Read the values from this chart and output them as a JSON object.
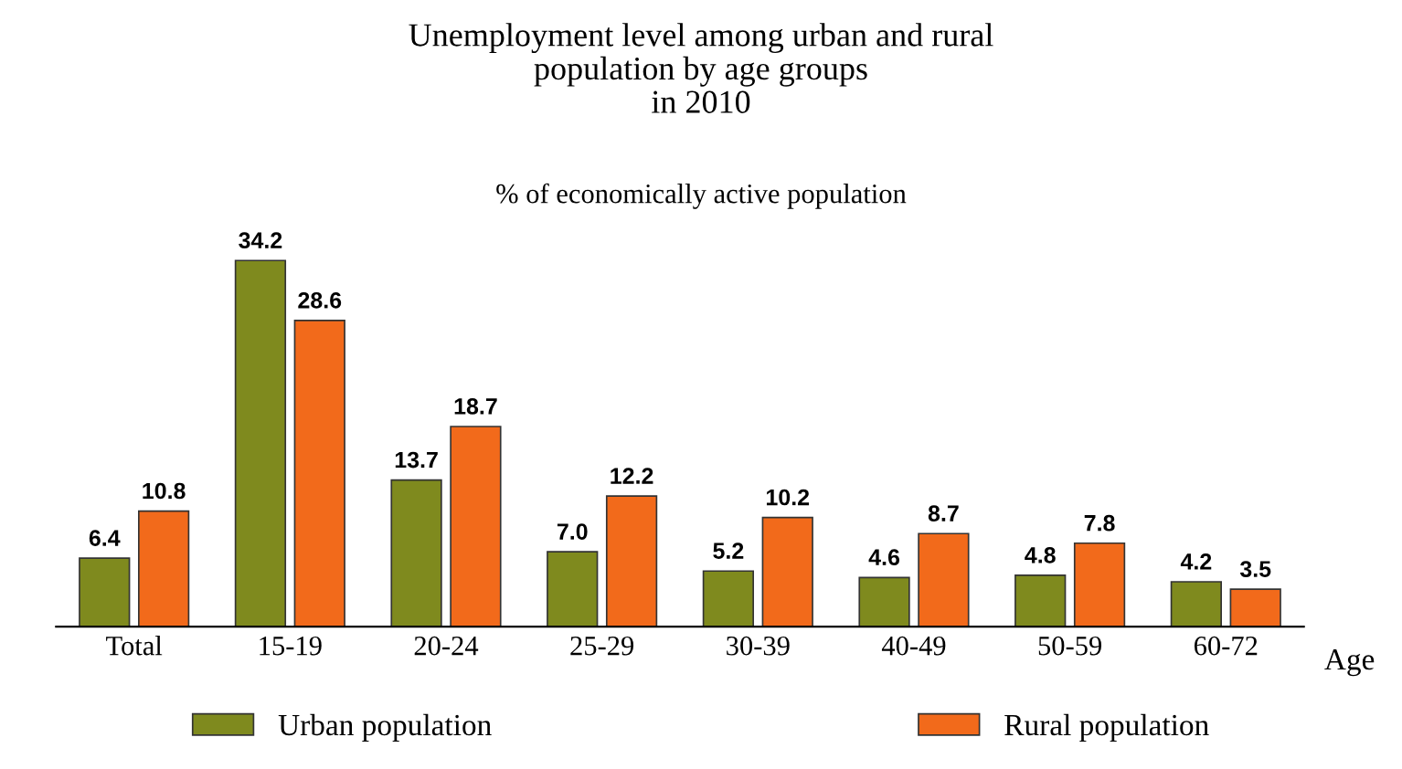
{
  "chart_data": {
    "type": "bar",
    "title": "Unemployment level among urban and rural\npopulation by age groups\nin 2010",
    "subtitle": "% of economically active population",
    "xlabel": "Age",
    "categories": [
      "Total",
      "15-19",
      "20-24",
      "25-29",
      "30-39",
      "40-49",
      "50-59",
      "60-72"
    ],
    "series": [
      {
        "name": "Urban population",
        "color": "#7f8a1e",
        "values": [
          6.4,
          34.2,
          13.7,
          7.0,
          5.2,
          4.6,
          4.8,
          4.2
        ],
        "value_labels": [
          "6.4",
          "34.2",
          "13.7",
          "7.0",
          "5.2",
          "4.6",
          "4.8",
          "4.2"
        ]
      },
      {
        "name": "Rural population",
        "color": "#f26a1b",
        "values": [
          10.8,
          28.6,
          18.7,
          12.2,
          10.2,
          8.7,
          7.8,
          3.5
        ],
        "value_labels": [
          "10.8",
          "28.6",
          "18.7",
          "12.2",
          "10.2",
          "8.7",
          "7.8",
          "3.5"
        ]
      }
    ],
    "legend": "bottom",
    "grid": false,
    "tick_labels": "x"
  }
}
